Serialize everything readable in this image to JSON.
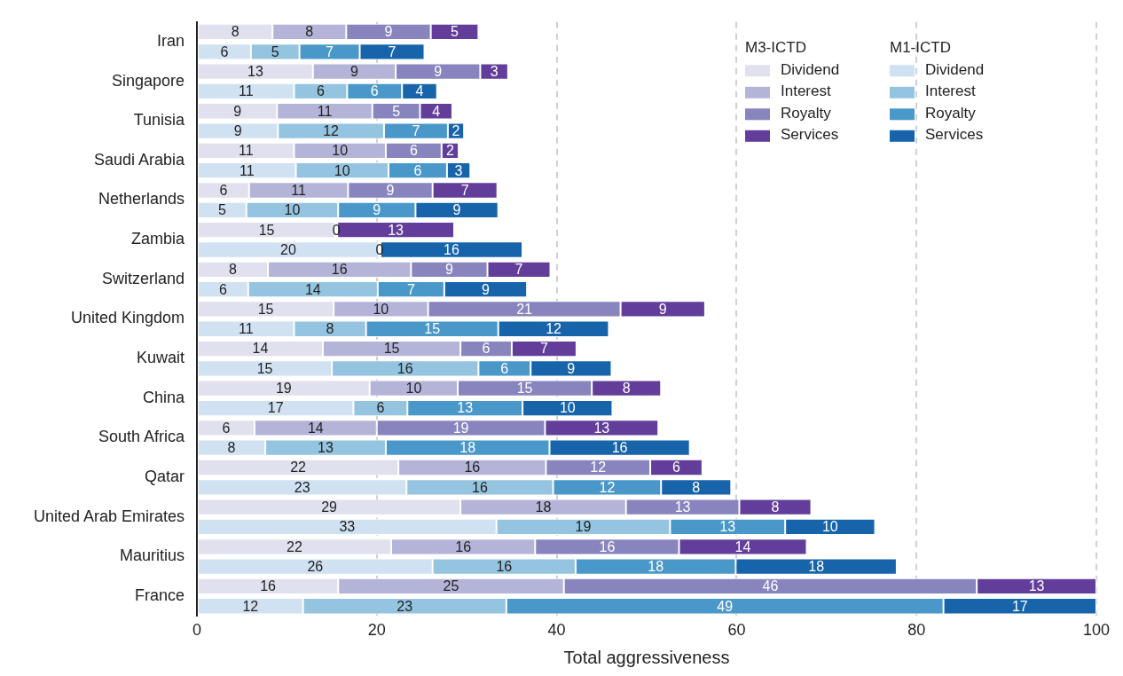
{
  "chart_data": {
    "type": "bar",
    "orientation": "horizontal",
    "stacked": true,
    "xlabel": "Total aggressiveness",
    "xlim": [
      0,
      100
    ],
    "xticks": [
      0,
      20,
      40,
      60,
      80,
      100
    ],
    "grid": "x",
    "legend": "top right",
    "legend_title": [
      "M3-ICTD",
      "M1-ICTD"
    ],
    "categories": [
      "Iran",
      null,
      "Singapore",
      null,
      "Tunisia",
      null,
      "Saudi Arabia",
      null,
      "Netherlands",
      null,
      "Zambia",
      null,
      "Switzerland",
      null,
      "United Kingdom",
      null,
      "Kuwait",
      null,
      "China",
      null,
      "South Africa",
      null,
      "Qatar",
      null,
      "United Arab Emirates",
      null,
      "Mauritius",
      null,
      "France",
      null
    ],
    "series": [
      {
        "name": "Dividend",
        "color": "#e1e0ee",
        "values": [
          8.4,
          null,
          12.9,
          null,
          8.9,
          null,
          10.8,
          null,
          5.8,
          null,
          15.4,
          null,
          7.9,
          null,
          15.2,
          null,
          14.0,
          null,
          19.2,
          null,
          6.4,
          null,
          22.4,
          null,
          29.3,
          null,
          21.6,
          null,
          15.7,
          null
        ],
        "value_labels": [
          "8",
          null,
          "13",
          null,
          "9",
          null,
          "11",
          null,
          "6",
          null,
          "15",
          null,
          "8",
          null,
          "15",
          null,
          "14",
          null,
          "19",
          null,
          "6",
          null,
          "22",
          null,
          "29",
          null,
          "22",
          null,
          "16",
          null
        ]
      },
      {
        "name": "Interest",
        "color": "#b4b4d9",
        "values": [
          8.2,
          null,
          9.2,
          null,
          10.6,
          null,
          10.2,
          null,
          11.0,
          null,
          0.2,
          null,
          15.9,
          null,
          10.5,
          null,
          15.3,
          null,
          9.8,
          null,
          13.6,
          null,
          16.4,
          null,
          18.4,
          null,
          16.0,
          null,
          25.1,
          null
        ],
        "value_labels": [
          "8",
          null,
          "9",
          null,
          "11",
          null,
          "10",
          null,
          "11",
          null,
          "0",
          null,
          "16",
          null,
          "10",
          null,
          "15",
          null,
          "10",
          null,
          "14",
          null,
          "16",
          null,
          "18",
          null,
          "16",
          null,
          "25",
          null
        ]
      },
      {
        "name": "Royalty",
        "color": "#8884bd",
        "values": [
          9.4,
          null,
          9.4,
          null,
          5.3,
          null,
          6.2,
          null,
          9.4,
          null,
          0,
          null,
          8.5,
          null,
          21.4,
          null,
          5.7,
          null,
          14.9,
          null,
          18.7,
          null,
          11.6,
          null,
          12.6,
          null,
          16.0,
          null,
          45.9,
          null
        ],
        "value_labels": [
          "9",
          null,
          "9",
          null,
          "5",
          null,
          "6",
          null,
          "9",
          null,
          null,
          null,
          "9",
          null,
          "21",
          null,
          "6",
          null,
          "15",
          null,
          "19",
          null,
          "12",
          null,
          "13",
          null,
          "16",
          null,
          "46",
          null
        ]
      },
      {
        "name": "Services",
        "color": "#623e9a",
        "values": [
          5.3,
          null,
          3.1,
          null,
          3.6,
          null,
          1.9,
          null,
          7.2,
          null,
          13.0,
          null,
          7.0,
          null,
          9.4,
          null,
          7.2,
          null,
          7.7,
          null,
          12.6,
          null,
          5.8,
          null,
          8.0,
          null,
          14.2,
          null,
          13.3,
          null
        ],
        "value_labels": [
          "5",
          null,
          "3",
          null,
          "4",
          null,
          "2",
          null,
          "7",
          null,
          "13",
          null,
          "7",
          null,
          "9",
          null,
          "7",
          null,
          "8",
          null,
          "13",
          null,
          "6",
          null,
          "8",
          null,
          "14",
          null,
          "13",
          null
        ]
      },
      {
        "name": "Dividend",
        "color": "#d0e1f2",
        "values": [
          null,
          6.0,
          null,
          10.8,
          null,
          9.0,
          null,
          11.0,
          null,
          5.5,
          null,
          20.2,
          null,
          5.7,
          null,
          10.8,
          null,
          15.0,
          null,
          17.4,
          null,
          7.6,
          null,
          23.3,
          null,
          33.3,
          null,
          26.2,
          null,
          11.8
        ],
        "value_labels": [
          null,
          "6",
          null,
          "11",
          null,
          "9",
          null,
          "11",
          null,
          "5",
          null,
          "20",
          null,
          "6",
          null,
          "11",
          null,
          "15",
          null,
          "17",
          null,
          "8",
          null,
          "23",
          null,
          "33",
          null,
          "26",
          null,
          "12"
        ]
      },
      {
        "name": "Interest",
        "color": "#94c4df",
        "values": [
          null,
          5.4,
          null,
          5.9,
          null,
          11.8,
          null,
          10.3,
          null,
          10.2,
          null,
          0.2,
          null,
          14.4,
          null,
          8.0,
          null,
          16.3,
          null,
          6.0,
          null,
          13.4,
          null,
          16.3,
          null,
          19.3,
          null,
          15.9,
          null,
          22.6
        ],
        "value_labels": [
          null,
          "5",
          null,
          "6",
          null,
          "12",
          null,
          "10",
          null,
          "10",
          null,
          "0",
          null,
          "14",
          null,
          "8",
          null,
          "16",
          null,
          "6",
          null,
          "13",
          null,
          "16",
          null,
          "19",
          null,
          "16",
          null,
          "23"
        ]
      },
      {
        "name": "Royalty",
        "color": "#4a98c9",
        "values": [
          null,
          6.7,
          null,
          6.1,
          null,
          7.1,
          null,
          6.5,
          null,
          8.6,
          null,
          0,
          null,
          7.4,
          null,
          14.7,
          null,
          5.8,
          null,
          12.8,
          null,
          18.2,
          null,
          12.0,
          null,
          12.8,
          null,
          17.8,
          null,
          48.6
        ],
        "value_labels": [
          null,
          "7",
          null,
          "6",
          null,
          "7",
          null,
          "6",
          null,
          "9",
          null,
          null,
          null,
          "7",
          null,
          "15",
          null,
          "6",
          null,
          "13",
          null,
          "18",
          null,
          "12",
          null,
          "13",
          null,
          "18",
          null,
          "49"
        ]
      },
      {
        "name": "Services",
        "color": "#1764ab",
        "values": [
          null,
          7.2,
          null,
          3.9,
          null,
          1.8,
          null,
          2.6,
          null,
          9.2,
          null,
          15.8,
          null,
          9.2,
          null,
          12.3,
          null,
          9.0,
          null,
          10.0,
          null,
          15.6,
          null,
          7.8,
          null,
          10.0,
          null,
          17.9,
          null,
          17.0
        ],
        "value_labels": [
          null,
          "7",
          null,
          "4",
          null,
          "2",
          null,
          "3",
          null,
          "9",
          null,
          "16",
          null,
          "9",
          null,
          "12",
          null,
          "9",
          null,
          "10",
          null,
          "16",
          null,
          "8",
          null,
          "10",
          null,
          "18",
          null,
          "17"
        ]
      }
    ]
  }
}
